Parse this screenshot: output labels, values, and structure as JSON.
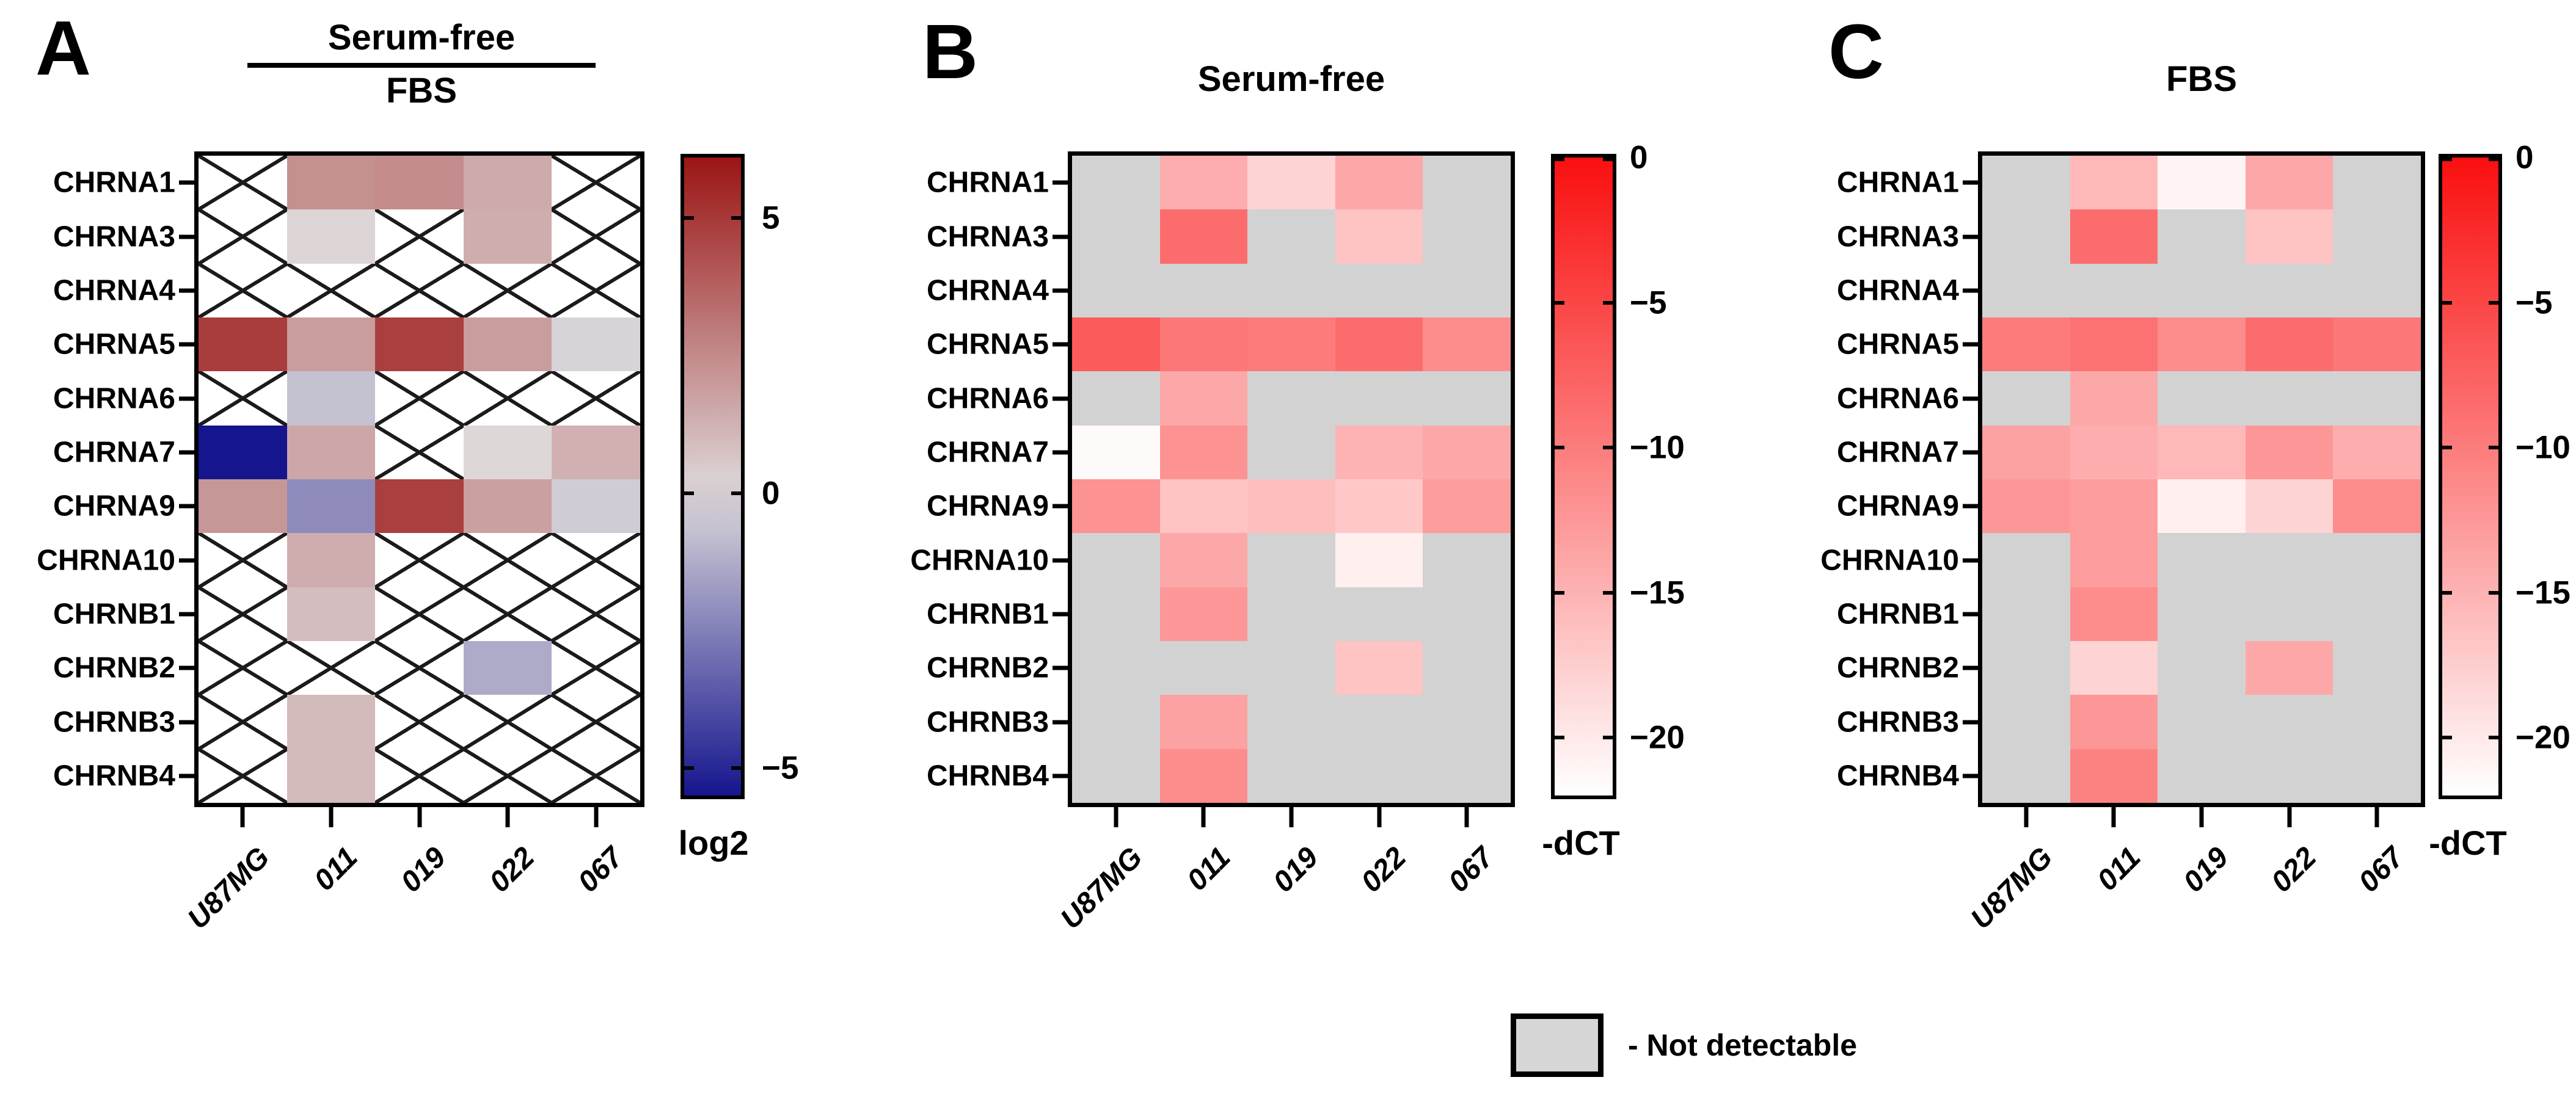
{
  "figure": {
    "background": "#ffffff",
    "panels": [
      {
        "letter": "A",
        "title_numerator": "Serum-free",
        "title_denominator": "FBS",
        "colorbar_label": "log2"
      },
      {
        "letter": "B",
        "title": "Serum-free",
        "colorbar_label": "-dCT"
      },
      {
        "letter": "C",
        "title": "FBS",
        "colorbar_label": "-dCT"
      }
    ],
    "legend": {
      "label": "- Not detectable",
      "swatch_color": "#d6d6d6"
    }
  },
  "chart_data": [
    {
      "type": "heatmap",
      "panel": "A",
      "title": "Serum-free / FBS",
      "value_label": "log2",
      "columns": [
        "U87MG",
        "011",
        "019",
        "022",
        "067"
      ],
      "rows": [
        "CHRNA1",
        "CHRNA3",
        "CHRNA4",
        "CHRNA5",
        "CHRNA6",
        "CHRNA7",
        "CHRNA9",
        "CHRNA10",
        "CHRNB1",
        "CHRNB2",
        "CHRNB3",
        "CHRNB4"
      ],
      "values": [
        [
          null,
          2.3,
          2.4,
          1.5,
          null
        ],
        [
          null,
          0.2,
          null,
          1.4,
          null
        ],
        [
          null,
          null,
          null,
          null,
          null
        ],
        [
          4.9,
          1.9,
          4.8,
          1.9,
          -0.2
        ],
        [
          null,
          -0.7,
          null,
          null,
          null
        ],
        [
          -6.0,
          1.6,
          null,
          0.1,
          1.3
        ],
        [
          2.1,
          -2.2,
          4.8,
          1.8,
          -0.4
        ],
        [
          null,
          1.4,
          null,
          null,
          null
        ],
        [
          null,
          0.9,
          null,
          null,
          null
        ],
        [
          null,
          null,
          null,
          -1.3,
          null
        ],
        [
          null,
          1.0,
          null,
          null,
          null
        ],
        [
          null,
          1.0,
          null,
          null,
          null
        ]
      ],
      "not_detectable": {
        "label": "Not detectable",
        "fill": "#ffffff",
        "pattern": "black-x"
      },
      "colorscale": {
        "kind": "diverging",
        "min": -5.5,
        "max": 6.1,
        "positive_color": "#9c1515",
        "mid_color": "#dedadb",
        "negative_color": "#15158e",
        "ticks": [
          {
            "value": 5,
            "label": "5"
          },
          {
            "value": 0,
            "label": "0"
          },
          {
            "value": -5,
            "label": "−5"
          }
        ]
      }
    },
    {
      "type": "heatmap",
      "panel": "B",
      "title": "Serum-free",
      "value_label": "-dCT",
      "columns": [
        "U87MG",
        "011",
        "019",
        "022",
        "067"
      ],
      "rows": [
        "CHRNA1",
        "CHRNA3",
        "CHRNA4",
        "CHRNA5",
        "CHRNA6",
        "CHRNA7",
        "CHRNA9",
        "CHRNA10",
        "CHRNB1",
        "CHRNB2",
        "CHRNB3",
        "CHRNB4"
      ],
      "values": [
        [
          null,
          -14.5,
          -18.0,
          -14.0,
          null
        ],
        [
          null,
          -8.5,
          null,
          -16.5,
          null
        ],
        [
          null,
          null,
          null,
          null,
          null
        ],
        [
          -7.0,
          -9.5,
          -10.0,
          -8.5,
          -11.5
        ],
        [
          null,
          -14.0,
          null,
          null,
          null
        ],
        [
          -21.5,
          -12.0,
          null,
          -15.0,
          -14.0
        ],
        [
          -12.0,
          -16.5,
          -16.0,
          -17.0,
          -13.0
        ],
        [
          null,
          -14.0,
          null,
          -20.5,
          null
        ],
        [
          null,
          -12.5,
          null,
          null,
          null
        ],
        [
          null,
          null,
          null,
          -16.5,
          null
        ],
        [
          null,
          -13.5,
          null,
          null,
          null
        ],
        [
          null,
          -11.5,
          null,
          null,
          null
        ]
      ],
      "not_detectable": {
        "label": "Not detectable",
        "fill": "#d2d2d2"
      },
      "colorscale": {
        "kind": "sequential",
        "min": -22,
        "max": 0,
        "high_color": "#fa0f0f",
        "low_color": "#ffffff",
        "ticks": [
          {
            "value": 0,
            "label": "0"
          },
          {
            "value": -5,
            "label": "−5"
          },
          {
            "value": -10,
            "label": "−10"
          },
          {
            "value": -15,
            "label": "−15"
          },
          {
            "value": -20,
            "label": "−20"
          }
        ]
      }
    },
    {
      "type": "heatmap",
      "panel": "C",
      "title": "FBS",
      "value_label": "-dCT",
      "columns": [
        "U87MG",
        "011",
        "019",
        "022",
        "067"
      ],
      "rows": [
        "CHRNA1",
        "CHRNA3",
        "CHRNA4",
        "CHRNA5",
        "CHRNA6",
        "CHRNA7",
        "CHRNA9",
        "CHRNA10",
        "CHRNB1",
        "CHRNB2",
        "CHRNB3",
        "CHRNB4"
      ],
      "values": [
        [
          null,
          -15.5,
          -21.0,
          -14.0,
          null
        ],
        [
          null,
          -8.5,
          null,
          -16.5,
          null
        ],
        [
          null,
          null,
          null,
          null,
          null
        ],
        [
          -10.0,
          -9.0,
          -11.5,
          -8.5,
          -9.5
        ],
        [
          null,
          -14.0,
          null,
          null,
          null
        ],
        [
          -13.5,
          -14.5,
          -15.5,
          -12.5,
          -14.5
        ],
        [
          -12.5,
          -13.0,
          -20.5,
          -18.0,
          -11.5
        ],
        [
          null,
          -13.0,
          null,
          null,
          null
        ],
        [
          null,
          -11.5,
          null,
          null,
          null
        ],
        [
          null,
          -18.0,
          null,
          -14.0,
          null
        ],
        [
          null,
          -12.5,
          null,
          null,
          null
        ],
        [
          null,
          -10.5,
          null,
          null,
          null
        ]
      ],
      "not_detectable": {
        "label": "Not detectable",
        "fill": "#d2d2d2"
      },
      "colorscale": {
        "kind": "sequential",
        "min": -22,
        "max": 0,
        "high_color": "#fa0f0f",
        "low_color": "#ffffff",
        "ticks": [
          {
            "value": 0,
            "label": "0"
          },
          {
            "value": -5,
            "label": "−5"
          },
          {
            "value": -10,
            "label": "−10"
          },
          {
            "value": -15,
            "label": "−15"
          },
          {
            "value": -20,
            "label": "−20"
          }
        ]
      }
    }
  ]
}
